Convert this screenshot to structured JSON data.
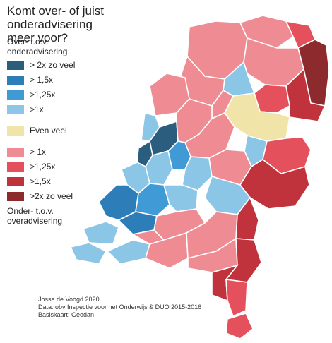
{
  "title_line1": "Komt over- of juist onderadvisering",
  "title_line2": "meer voor?",
  "legend": {
    "over_label_line1": "Over- t.o.v.",
    "over_label_line2": "onderadvisering",
    "over_items": [
      {
        "label": "> 2x zo veel",
        "color": "#2b5d7e"
      },
      {
        "label": "> 1,5x",
        "color": "#2c7db8"
      },
      {
        "label": ">1,25x",
        "color": "#3f9ad5"
      },
      {
        "label": ">1x",
        "color": "#8cc6e6"
      }
    ],
    "neutral_item": {
      "label": "Even veel",
      "color": "#f0e4a8"
    },
    "under_items": [
      {
        "label": "> 1x",
        "color": "#ee8b93"
      },
      {
        "label": ">1,25x",
        "color": "#e4505c"
      },
      {
        "label": ">1,5x",
        "color": "#c0323c"
      },
      {
        "label": ">2x zo veel",
        "color": "#8c2a2e"
      }
    ],
    "under_label_line1": "Onder- t.o.v.",
    "under_label_line2": "overadvisering"
  },
  "credits": {
    "line1": "Josse de Voogd 2020",
    "line2": "Data: obv Inspectie voor het Onderwijs & DUO 2015-2016",
    "line3": "Basiskaart: Geodan"
  },
  "colors": {
    "over_2x": "#2b5d7e",
    "over_15": "#2c7db8",
    "over_125": "#3f9ad5",
    "over_1": "#8cc6e6",
    "neutral": "#f0e4a8",
    "under_1": "#ee8b93",
    "under_125": "#e4505c",
    "under_15": "#c0323c",
    "under_2x": "#8c2a2e"
  }
}
